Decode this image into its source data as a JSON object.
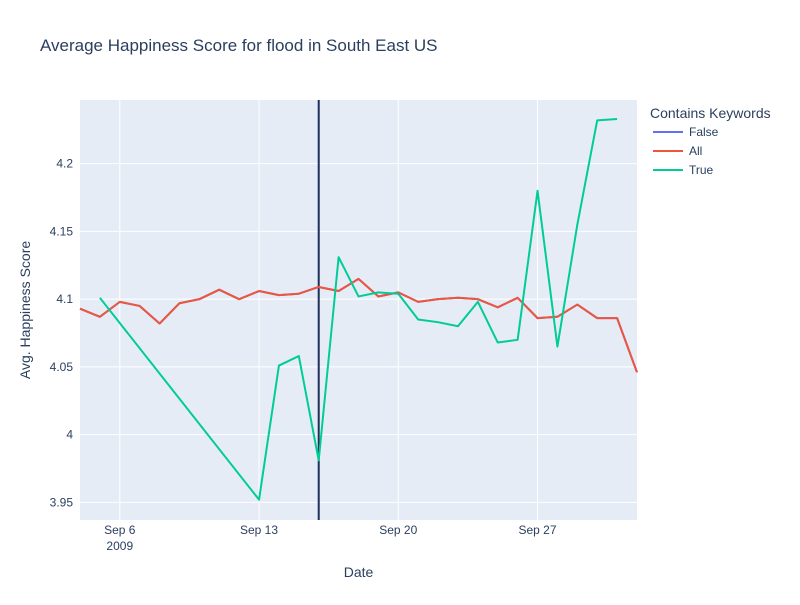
{
  "chart_data": {
    "type": "line",
    "title": "Average Happiness Score for flood in South East US",
    "xlabel": "Date",
    "ylabel": "Avg. Happiness Score",
    "xlim": [
      "2009-09-04",
      "2009-10-02"
    ],
    "ylim": [
      3.937,
      4.247
    ],
    "yticks": [
      3.95,
      4.0,
      4.05,
      4.1,
      4.15,
      4.2
    ],
    "ytick_labels": [
      "3.95",
      "4",
      "4.05",
      "4.1",
      "4.15",
      "4.2"
    ],
    "xticks": [
      "2009-09-06",
      "2009-09-13",
      "2009-09-20",
      "2009-09-27"
    ],
    "xtick_labels": [
      "Sep 6",
      "Sep 13",
      "Sep 20",
      "Sep 27"
    ],
    "xtick_year_label": "2009",
    "grid": true,
    "background_color": "#E5ECF6",
    "vertical_line": {
      "x": "2009-09-16",
      "color": "#1F2F5A"
    },
    "legend": {
      "title": "Contains Keywords",
      "placement": "right",
      "entries": [
        "False",
        "All",
        "True"
      ]
    },
    "series": [
      {
        "name": "False",
        "color": "#636EFA",
        "x": [
          "2009-09-04",
          "2009-09-05",
          "2009-09-06",
          "2009-09-07",
          "2009-09-08",
          "2009-09-09",
          "2009-09-10",
          "2009-09-11",
          "2009-09-12",
          "2009-09-13",
          "2009-09-14",
          "2009-09-15",
          "2009-09-16",
          "2009-09-17",
          "2009-09-18",
          "2009-09-19",
          "2009-09-20",
          "2009-09-21",
          "2009-09-22",
          "2009-09-23",
          "2009-09-24",
          "2009-09-25",
          "2009-09-26",
          "2009-09-27",
          "2009-09-28",
          "2009-09-29",
          "2009-09-30",
          "2009-10-01",
          "2009-10-02"
        ],
        "y": [
          4.093,
          4.087,
          4.098,
          4.095,
          4.082,
          4.097,
          4.1,
          4.107,
          4.1,
          4.106,
          4.103,
          4.104,
          4.109,
          4.106,
          4.115,
          4.102,
          4.105,
          4.098,
          4.1,
          4.101,
          4.1,
          4.094,
          4.101,
          4.086,
          4.087,
          4.096,
          4.086,
          4.086,
          4.046
        ]
      },
      {
        "name": "All",
        "color": "#EF553B",
        "x": [
          "2009-09-04",
          "2009-09-05",
          "2009-09-06",
          "2009-09-07",
          "2009-09-08",
          "2009-09-09",
          "2009-09-10",
          "2009-09-11",
          "2009-09-12",
          "2009-09-13",
          "2009-09-14",
          "2009-09-15",
          "2009-09-16",
          "2009-09-17",
          "2009-09-18",
          "2009-09-19",
          "2009-09-20",
          "2009-09-21",
          "2009-09-22",
          "2009-09-23",
          "2009-09-24",
          "2009-09-25",
          "2009-09-26",
          "2009-09-27",
          "2009-09-28",
          "2009-09-29",
          "2009-09-30",
          "2009-10-01",
          "2009-10-02"
        ],
        "y": [
          4.093,
          4.087,
          4.098,
          4.095,
          4.082,
          4.097,
          4.1,
          4.107,
          4.1,
          4.106,
          4.103,
          4.104,
          4.109,
          4.106,
          4.115,
          4.102,
          4.105,
          4.098,
          4.1,
          4.101,
          4.1,
          4.094,
          4.101,
          4.086,
          4.087,
          4.096,
          4.086,
          4.086,
          4.046
        ]
      },
      {
        "name": "True",
        "color": "#00CC96",
        "x": [
          "2009-09-05",
          "2009-09-13",
          "2009-09-14",
          "2009-09-15",
          "2009-09-16",
          "2009-09-17",
          "2009-09-18",
          "2009-09-19",
          "2009-09-20",
          "2009-09-21",
          "2009-09-22",
          "2009-09-23",
          "2009-09-24",
          "2009-09-25",
          "2009-09-26",
          "2009-09-27",
          "2009-09-28",
          "2009-09-29",
          "2009-09-30",
          "2009-10-01"
        ],
        "y": [
          4.101,
          3.952,
          4.051,
          4.058,
          3.981,
          4.131,
          4.102,
          4.105,
          4.104,
          4.085,
          4.083,
          4.08,
          4.098,
          4.068,
          4.07,
          4.18,
          4.065,
          4.155,
          4.232,
          4.233
        ]
      }
    ]
  }
}
